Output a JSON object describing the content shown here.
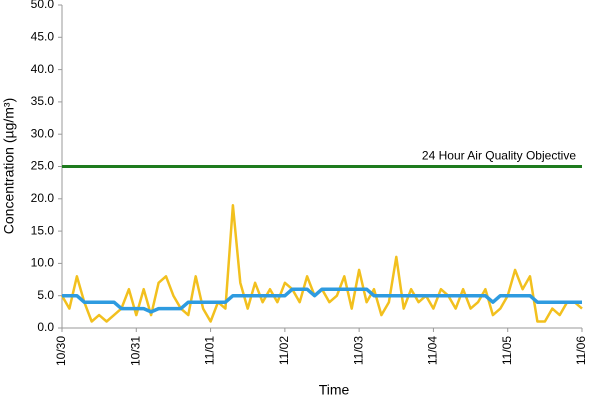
{
  "chart_data": {
    "type": "line",
    "y_label": "Concentration (µg/m³)",
    "x_label": "Time",
    "xticks": [
      "10/30",
      "10/31",
      "11/01",
      "11/02",
      "11/03",
      "11/04",
      "11/05",
      "11/06"
    ],
    "ylim": [
      0,
      50
    ],
    "yticks": [
      {
        "value": 0,
        "label": "0.0"
      },
      {
        "value": 5,
        "label": "5.0"
      },
      {
        "value": 10,
        "label": "10.0"
      },
      {
        "value": 15,
        "label": "15.0"
      },
      {
        "value": 20,
        "label": "20.0"
      },
      {
        "value": 25,
        "label": "25.0"
      },
      {
        "value": 30,
        "label": "30.0"
      },
      {
        "value": 35,
        "label": "35.0"
      },
      {
        "value": 40,
        "label": "40.0"
      },
      {
        "value": 45,
        "label": "45.0"
      },
      {
        "value": 50,
        "label": "50.0"
      }
    ],
    "grid": false,
    "reference_line": {
      "value": 25,
      "label": "24 Hour Air Quality Objective",
      "color": "#1e7b1e"
    },
    "series": [
      {
        "color": "#f2c01e",
        "width": 2.5,
        "values": [
          5,
          3,
          8,
          4,
          1,
          2,
          1,
          2,
          3,
          6,
          2,
          6,
          2,
          7,
          8,
          5,
          3,
          2,
          8,
          3,
          1,
          4,
          3,
          19,
          7,
          3,
          7,
          4,
          6,
          4,
          7,
          6,
          4,
          8,
          5,
          6,
          4,
          5,
          8,
          3,
          9,
          4,
          6,
          2,
          4,
          11,
          3,
          6,
          4,
          5,
          3,
          6,
          5,
          3,
          6,
          3,
          4,
          6,
          2,
          3,
          5,
          9,
          6,
          8,
          1,
          1,
          3,
          2,
          4,
          4,
          3
        ]
      },
      {
        "color": "#2e9be0",
        "width": 3.5,
        "values": [
          5,
          5,
          5,
          4,
          4,
          4,
          4,
          4,
          3,
          3,
          3,
          3,
          2.5,
          3,
          3,
          3,
          3,
          4,
          4,
          4,
          4,
          4,
          4,
          5,
          5,
          5,
          5,
          5,
          5,
          5,
          5,
          6,
          6,
          6,
          5,
          6,
          6,
          6,
          6,
          6,
          6,
          6,
          5,
          5,
          5,
          5,
          5,
          5,
          5,
          5,
          5,
          5,
          5,
          5,
          5,
          5,
          5,
          5,
          4,
          5,
          5,
          5,
          5,
          5,
          4,
          4,
          4,
          4,
          4,
          4,
          4
        ]
      }
    ]
  }
}
